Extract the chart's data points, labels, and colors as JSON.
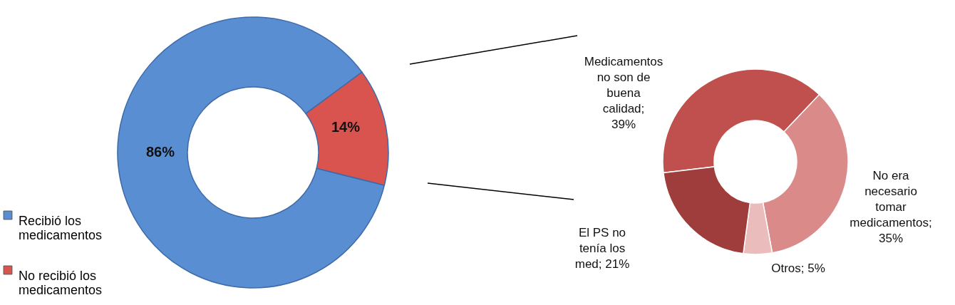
{
  "chart_data": [
    {
      "type": "donut",
      "categories": [
        "Recibió los medicamentos",
        "No recibió los medicamentos"
      ],
      "values": [
        86,
        14
      ],
      "colors": [
        "#5a8ed3",
        "#d9534f"
      ],
      "value_labels": [
        "86%",
        "14%"
      ],
      "legend": "left"
    },
    {
      "type": "donut",
      "categories": [
        "Medicamentos no son de buena calidad; 39%",
        "No era necesario tomar medicamentos; 35%",
        "Otros; 5%",
        "El PS no tenía los med; 21%"
      ],
      "values": [
        39,
        35,
        5,
        21
      ],
      "colors": [
        "#c0504d",
        "#d98a89",
        "#ebbcbc",
        "#9e3d3b"
      ]
    }
  ]
}
